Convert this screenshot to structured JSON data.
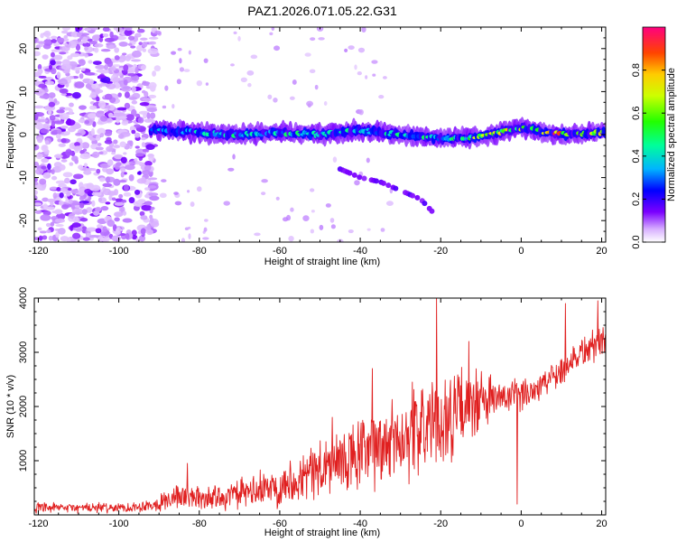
{
  "title": "PAZ1.2026.071.05.22.G31",
  "chart_data": [
    {
      "type": "heatmap",
      "name": "spectrogram",
      "xlabel": "Height of straight line (km)",
      "ylabel": "Frequency (Hz)",
      "xlim": [
        -121,
        21
      ],
      "ylim": [
        -25,
        25
      ],
      "xticks": [
        -120,
        -100,
        -80,
        -60,
        -40,
        -20,
        0,
        20
      ],
      "xtick_labels": [
        "-120",
        "-100",
        "-80",
        "-60",
        "-40",
        "-20",
        "0",
        "20"
      ],
      "yticks": [
        -20,
        -10,
        0,
        10,
        20
      ],
      "ytick_labels": [
        "-20",
        "-10",
        "0",
        "10",
        "20"
      ],
      "colorbar": {
        "label": "Normalized spectral amplitude",
        "range": [
          0,
          1
        ],
        "ticks": [
          0.0,
          0.2,
          0.4,
          0.6,
          0.8
        ],
        "tick_labels": [
          "0.0",
          "0.2",
          "0.4",
          "0.6",
          "0.8"
        ],
        "colormap": [
          "#ffffff",
          "#7b00ff",
          "#0000ff",
          "#00ccff",
          "#00ff88",
          "#22ff00",
          "#ccff00",
          "#ffcc00",
          "#ff6600",
          "#ff0000",
          "#ff0088"
        ]
      },
      "main_signal": {
        "description_points_x": [
          -90,
          -80,
          -70,
          -60,
          -50,
          -40,
          -30,
          -20,
          -10,
          0,
          10,
          20
        ],
        "frequency_hz": [
          1,
          0.5,
          0,
          0.5,
          0,
          1,
          0,
          -1,
          -0.5,
          1.5,
          0,
          0.5
        ],
        "peak_amplitude": [
          0.35,
          0.45,
          0.5,
          0.5,
          0.45,
          0.45,
          0.5,
          0.45,
          0.7,
          0.8,
          0.9,
          0.85
        ]
      },
      "secondary_trace": {
        "x": [
          -45,
          -40,
          -35,
          -30,
          -25,
          -22
        ],
        "frequency_hz": [
          -8,
          -10,
          -11,
          -13,
          -15,
          -18
        ]
      }
    },
    {
      "type": "line",
      "name": "snr",
      "xlabel": "Height of straight line (km)",
      "ylabel": "SNR (10 * v/v)",
      "xlim": [
        -121,
        21
      ],
      "ylim": [
        0,
        4000
      ],
      "xticks": [
        -120,
        -100,
        -80,
        -60,
        -40,
        -20,
        0,
        20
      ],
      "xtick_labels": [
        "-120",
        "-100",
        "-80",
        "-60",
        "-40",
        "-20",
        "0",
        "20"
      ],
      "yticks": [
        1000,
        2000,
        3000,
        4000
      ],
      "ytick_labels": [
        "1000",
        "2000",
        "3000",
        "4000"
      ],
      "color": "#e02020",
      "envelope": {
        "x": [
          -121,
          -110,
          -100,
          -95,
          -90,
          -85,
          -80,
          -75,
          -70,
          -65,
          -60,
          -55,
          -50,
          -45,
          -40,
          -35,
          -30,
          -25,
          -20,
          -15,
          -10,
          -5,
          0,
          5,
          10,
          15,
          20,
          21
        ],
        "mean": [
          120,
          130,
          130,
          150,
          220,
          350,
          300,
          330,
          380,
          450,
          550,
          700,
          850,
          950,
          1100,
          1250,
          1450,
          1600,
          1750,
          1900,
          2100,
          2150,
          2200,
          2400,
          2700,
          3000,
          3200,
          3300
        ],
        "spread": [
          110,
          110,
          110,
          120,
          180,
          300,
          260,
          280,
          320,
          400,
          450,
          500,
          700,
          750,
          850,
          900,
          1000,
          1050,
          1050,
          950,
          700,
          400,
          350,
          350,
          350,
          400,
          350,
          350
        ]
      },
      "notable_points": [
        {
          "x": -83,
          "y": 950
        },
        {
          "x": -47,
          "y": 1800
        },
        {
          "x": -37,
          "y": 2700
        },
        {
          "x": -21,
          "y": 4000
        },
        {
          "x": -13,
          "y": 3200
        },
        {
          "x": -1,
          "y": 200
        },
        {
          "x": 11,
          "y": 3900
        },
        {
          "x": 19,
          "y": 3950
        }
      ]
    }
  ]
}
